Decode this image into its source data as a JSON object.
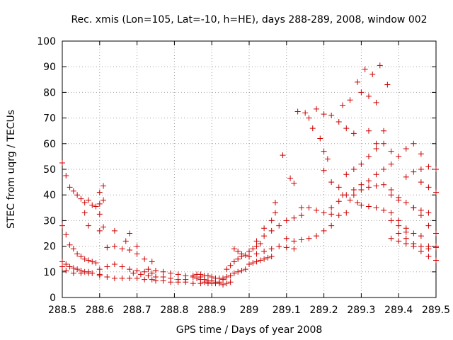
{
  "chart_data": {
    "type": "scatter",
    "title": "Rec. xmis (Lon=105, Lat=-10, h=HE), days 288-289, 2008, window 002",
    "xlabel": "GPS time / Days of year 2008",
    "ylabel": "STEC from uqrg / TECUs",
    "xlim": [
      288.5,
      289.5
    ],
    "ylim": [
      0,
      100
    ],
    "x_tick_labels": [
      "288.5",
      "288.6",
      "288.7",
      "288.8",
      "288.9",
      "289",
      "289.1",
      "289.2",
      "289.3",
      "289.4",
      "289.5"
    ],
    "y_tick_labels": [
      "0",
      "10",
      "20",
      "30",
      "40",
      "50",
      "60",
      "70",
      "80",
      "90",
      "100"
    ],
    "grid": true,
    "marker": "+",
    "color": "#cc0000",
    "series": [
      {
        "points": [
          [
            288.5,
            52.5
          ],
          [
            288.51,
            47.5
          ],
          [
            288.52,
            43
          ],
          [
            288.53,
            41.5
          ],
          [
            288.54,
            40
          ],
          [
            288.55,
            38.5
          ],
          [
            288.56,
            37
          ],
          [
            288.57,
            38
          ],
          [
            288.58,
            36
          ],
          [
            288.59,
            35.5
          ],
          [
            288.6,
            36.5
          ],
          [
            288.61,
            38
          ],
          [
            288.5,
            28
          ],
          [
            288.51,
            24.5
          ],
          [
            288.52,
            20.5
          ],
          [
            288.53,
            19
          ],
          [
            288.54,
            17
          ],
          [
            288.55,
            16
          ],
          [
            288.56,
            15
          ],
          [
            288.57,
            14.5
          ],
          [
            288.58,
            14
          ],
          [
            288.59,
            13.5
          ],
          [
            288.5,
            14
          ],
          [
            288.51,
            13
          ],
          [
            288.52,
            12
          ],
          [
            288.53,
            11.5
          ],
          [
            288.54,
            11
          ],
          [
            288.55,
            10.5
          ],
          [
            288.56,
            10
          ],
          [
            288.57,
            9.5
          ],
          [
            288.58,
            9.5
          ],
          [
            288.6,
            9
          ],
          [
            288.5,
            12
          ],
          [
            288.51,
            10.5
          ],
          [
            288.53,
            9.5
          ],
          [
            288.55,
            9.5
          ],
          [
            288.57,
            10
          ],
          [
            288.6,
            41
          ],
          [
            288.61,
            43.5
          ],
          [
            288.6,
            32.5
          ],
          [
            288.61,
            27.5
          ],
          [
            288.56,
            33
          ],
          [
            288.57,
            28
          ],
          [
            288.6,
            26
          ],
          [
            288.64,
            26
          ],
          [
            288.67,
            22
          ],
          [
            288.68,
            25
          ],
          [
            288.7,
            20
          ],
          [
            288.62,
            19.5
          ],
          [
            288.64,
            20
          ],
          [
            288.66,
            19
          ],
          [
            288.68,
            18.5
          ],
          [
            288.7,
            17
          ],
          [
            288.72,
            15
          ],
          [
            288.74,
            14
          ],
          [
            288.6,
            11
          ],
          [
            288.62,
            12
          ],
          [
            288.64,
            13
          ],
          [
            288.66,
            12
          ],
          [
            288.68,
            11
          ],
          [
            288.7,
            10.5
          ],
          [
            288.72,
            10
          ],
          [
            288.74,
            9.5
          ],
          [
            288.6,
            8.5
          ],
          [
            288.62,
            8
          ],
          [
            288.64,
            7.5
          ],
          [
            288.66,
            7.5
          ],
          [
            288.68,
            7.5
          ],
          [
            288.7,
            7.5
          ],
          [
            288.72,
            7
          ],
          [
            288.74,
            7
          ],
          [
            288.69,
            9.5
          ],
          [
            288.71,
            9
          ],
          [
            288.73,
            8.5
          ],
          [
            288.75,
            8
          ],
          [
            288.77,
            8
          ],
          [
            288.79,
            7.5
          ],
          [
            288.81,
            7
          ],
          [
            288.83,
            7
          ],
          [
            288.73,
            11
          ],
          [
            288.75,
            10.5
          ],
          [
            288.77,
            10
          ],
          [
            288.79,
            9.5
          ],
          [
            288.81,
            9
          ],
          [
            288.83,
            8.5
          ],
          [
            288.85,
            8.5
          ],
          [
            288.87,
            8
          ],
          [
            288.75,
            6.5
          ],
          [
            288.77,
            6.5
          ],
          [
            288.79,
            6
          ],
          [
            288.81,
            6
          ],
          [
            288.83,
            6
          ],
          [
            288.85,
            5.5
          ],
          [
            288.87,
            5.5
          ],
          [
            288.89,
            5.5
          ],
          [
            288.85,
            8
          ],
          [
            288.86,
            7.5
          ],
          [
            288.87,
            7
          ],
          [
            288.88,
            7
          ],
          [
            288.89,
            6.5
          ],
          [
            288.9,
            6.5
          ],
          [
            288.91,
            6
          ],
          [
            288.92,
            6
          ],
          [
            288.86,
            9
          ],
          [
            288.87,
            9
          ],
          [
            288.88,
            8.5
          ],
          [
            288.89,
            8.5
          ],
          [
            288.9,
            8
          ],
          [
            288.91,
            7.5
          ],
          [
            288.92,
            7.5
          ],
          [
            288.93,
            7
          ],
          [
            288.88,
            6
          ],
          [
            288.89,
            6
          ],
          [
            288.9,
            5.5
          ],
          [
            288.91,
            5.5
          ],
          [
            288.92,
            5.5
          ],
          [
            288.93,
            5
          ],
          [
            288.94,
            5.5
          ],
          [
            288.95,
            6
          ],
          [
            288.93,
            7.5
          ],
          [
            288.94,
            8
          ],
          [
            288.95,
            8.5
          ],
          [
            288.96,
            9.5
          ],
          [
            288.97,
            10
          ],
          [
            288.98,
            10.5
          ],
          [
            288.99,
            11
          ],
          [
            288.94,
            11
          ],
          [
            288.95,
            12.5
          ],
          [
            288.96,
            14
          ],
          [
            288.97,
            15
          ],
          [
            288.98,
            16
          ],
          [
            288.99,
            16.5
          ],
          [
            288.96,
            19
          ],
          [
            288.97,
            18
          ],
          [
            288.98,
            17
          ],
          [
            289.0,
            18
          ],
          [
            289.01,
            19
          ],
          [
            289.02,
            20
          ],
          [
            289.03,
            21
          ],
          [
            289.0,
            13
          ],
          [
            289.01,
            13.5
          ],
          [
            289.02,
            14
          ],
          [
            289.03,
            14.5
          ],
          [
            289.04,
            15
          ],
          [
            289.05,
            15.5
          ],
          [
            289.06,
            16
          ],
          [
            289.0,
            16
          ],
          [
            289.02,
            17
          ],
          [
            289.04,
            18
          ],
          [
            289.06,
            19
          ],
          [
            289.08,
            20
          ],
          [
            289.1,
            19.5
          ],
          [
            289.12,
            19
          ],
          [
            289.02,
            22
          ],
          [
            289.04,
            24
          ],
          [
            289.06,
            26
          ],
          [
            289.08,
            28
          ],
          [
            289.1,
            30
          ],
          [
            289.12,
            31
          ],
          [
            289.14,
            32
          ],
          [
            289.04,
            27
          ],
          [
            289.06,
            30
          ],
          [
            289.07,
            33
          ],
          [
            289.07,
            37
          ],
          [
            289.09,
            55.5
          ],
          [
            289.11,
            46.5
          ],
          [
            289.12,
            44.5
          ],
          [
            289.1,
            23
          ],
          [
            289.12,
            22
          ],
          [
            289.14,
            22.5
          ],
          [
            289.16,
            23
          ],
          [
            289.18,
            24
          ],
          [
            289.2,
            26
          ],
          [
            289.22,
            28
          ],
          [
            289.13,
            72.5
          ],
          [
            289.15,
            72
          ],
          [
            289.16,
            70
          ],
          [
            289.17,
            66
          ],
          [
            289.19,
            62
          ],
          [
            289.2,
            57
          ],
          [
            289.21,
            54
          ],
          [
            289.14,
            35
          ],
          [
            289.16,
            35
          ],
          [
            289.18,
            34
          ],
          [
            289.2,
            33
          ],
          [
            289.22,
            32.5
          ],
          [
            289.24,
            32
          ],
          [
            289.26,
            33
          ],
          [
            289.18,
            73.5
          ],
          [
            289.2,
            71.5
          ],
          [
            289.22,
            71
          ],
          [
            289.24,
            68.5
          ],
          [
            289.26,
            66
          ],
          [
            289.28,
            64
          ],
          [
            289.2,
            49.5
          ],
          [
            289.22,
            45
          ],
          [
            289.24,
            43
          ],
          [
            289.25,
            40
          ],
          [
            289.27,
            38
          ],
          [
            289.29,
            37
          ],
          [
            289.22,
            35
          ],
          [
            289.24,
            37.5
          ],
          [
            289.26,
            40
          ],
          [
            289.28,
            42
          ],
          [
            289.3,
            44
          ],
          [
            289.32,
            45.5
          ],
          [
            289.25,
            75
          ],
          [
            289.27,
            77
          ],
          [
            289.29,
            84
          ],
          [
            289.31,
            89
          ],
          [
            289.33,
            87
          ],
          [
            289.35,
            90.5
          ],
          [
            289.37,
            83
          ],
          [
            289.3,
            80
          ],
          [
            289.32,
            78.5
          ],
          [
            289.34,
            76
          ],
          [
            289.36,
            65
          ],
          [
            289.32,
            65
          ],
          [
            289.34,
            60
          ],
          [
            289.26,
            48
          ],
          [
            289.28,
            50
          ],
          [
            289.3,
            52
          ],
          [
            289.32,
            55
          ],
          [
            289.34,
            58
          ],
          [
            289.36,
            60
          ],
          [
            289.38,
            57
          ],
          [
            289.3,
            36
          ],
          [
            289.32,
            35.5
          ],
          [
            289.34,
            35
          ],
          [
            289.36,
            34
          ],
          [
            289.38,
            33
          ],
          [
            289.4,
            30
          ],
          [
            289.42,
            27
          ],
          [
            289.28,
            40
          ],
          [
            289.3,
            42
          ],
          [
            289.32,
            43
          ],
          [
            289.34,
            43.5
          ],
          [
            289.36,
            44
          ],
          [
            289.38,
            42
          ],
          [
            289.4,
            39
          ],
          [
            289.34,
            48
          ],
          [
            289.36,
            50
          ],
          [
            289.38,
            52
          ],
          [
            289.4,
            55
          ],
          [
            289.42,
            58
          ],
          [
            289.44,
            60
          ],
          [
            289.46,
            56
          ],
          [
            289.38,
            40
          ],
          [
            289.4,
            38
          ],
          [
            289.42,
            37
          ],
          [
            289.44,
            35
          ],
          [
            289.46,
            34
          ],
          [
            289.48,
            33
          ],
          [
            289.4,
            25
          ],
          [
            289.42,
            23
          ],
          [
            289.44,
            21
          ],
          [
            289.46,
            20
          ],
          [
            289.48,
            19
          ],
          [
            289.5,
            20
          ],
          [
            289.42,
            47
          ],
          [
            289.44,
            49
          ],
          [
            289.46,
            50
          ],
          [
            289.48,
            51
          ],
          [
            289.5,
            50
          ],
          [
            289.44,
            35
          ],
          [
            289.46,
            32
          ],
          [
            289.48,
            28
          ],
          [
            289.5,
            25
          ],
          [
            289.38,
            23
          ],
          [
            289.4,
            22
          ],
          [
            289.42,
            21
          ],
          [
            289.44,
            20
          ],
          [
            289.46,
            18
          ],
          [
            289.48,
            16
          ],
          [
            289.5,
            14.5
          ],
          [
            289.38,
            30
          ],
          [
            289.4,
            28
          ],
          [
            289.42,
            25.5
          ],
          [
            289.44,
            25
          ],
          [
            289.46,
            24
          ],
          [
            289.48,
            20
          ],
          [
            289.5,
            19.5
          ],
          [
            289.46,
            45
          ],
          [
            289.48,
            43
          ],
          [
            289.5,
            41
          ]
        ]
      }
    ]
  }
}
